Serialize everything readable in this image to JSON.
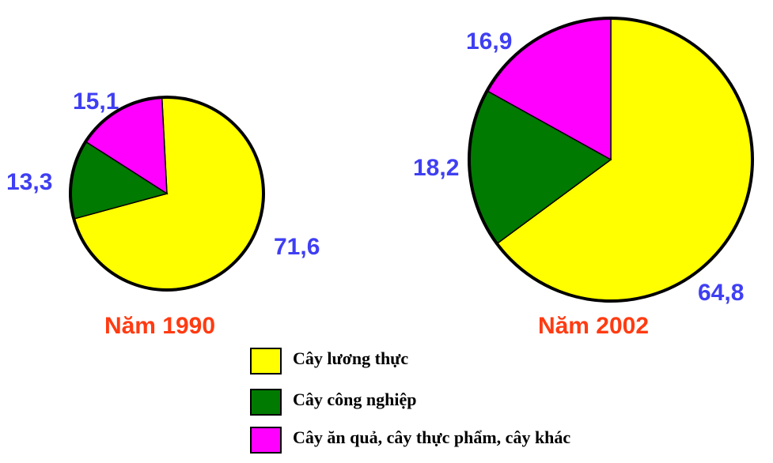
{
  "chart_data": [
    {
      "type": "pie",
      "title": "Năm 1990",
      "categories": [
        "Cây lương thực",
        "Cây công nghiệp",
        "Cây ăn quả, cây thực phẩm, cây khác"
      ],
      "values": [
        71.6,
        13.3,
        15.1
      ],
      "value_labels": [
        "71,6",
        "13,3",
        "15,1"
      ]
    },
    {
      "type": "pie",
      "title": "Năm 2002",
      "categories": [
        "Cây lương thực",
        "Cây công nghiệp",
        "Cây ăn quả, cây thực phẩm, cây khác"
      ],
      "values": [
        64.8,
        18.2,
        16.9
      ],
      "value_labels": [
        "64,8",
        "18,2",
        "16,9"
      ]
    }
  ],
  "legend": [
    {
      "label": "Cây lương thực",
      "color": "#ffff00"
    },
    {
      "label": "Cây công nghiệp",
      "color": "#007a00"
    },
    {
      "label": "Cây ăn quả, cây thực phẩm, cây khác",
      "color": "#ff00ff"
    }
  ],
  "colors": {
    "value_label": "#3f3ff3",
    "year_label": "#ff3b12",
    "outline": "#000000"
  }
}
